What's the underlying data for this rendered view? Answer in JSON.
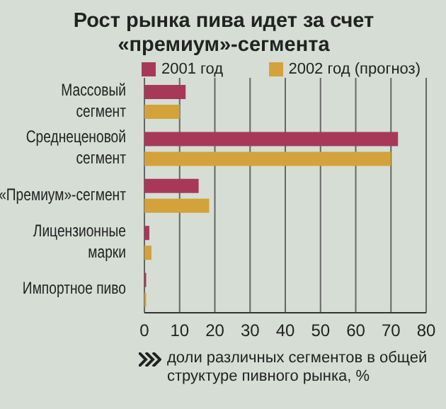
{
  "chart_data": {
    "type": "bar",
    "orientation": "horizontal",
    "title": "Рост рынка пива идет за счет «премиум»-сегмента",
    "xlabel": "доли различных сегментов в общей структуре пивного рынка, %",
    "categories": [
      "Массовый сегмент",
      "Среднеценовой сегмент",
      "«Премиум»-сегмент",
      "Лицензионные марки",
      "Импортное пиво"
    ],
    "series": [
      {
        "name": "2001 год",
        "color": "#a8385a",
        "values": [
          11.7,
          72,
          15.4,
          1.4,
          0.5
        ]
      },
      {
        "name": "2002 год (прогноз)",
        "color": "#d4a23a",
        "values": [
          10,
          70,
          18.4,
          2,
          0.5
        ]
      }
    ],
    "xlim": [
      0,
      80
    ],
    "xticks": [
      0,
      10,
      20,
      30,
      40,
      50,
      60,
      70,
      80
    ],
    "grid": "x",
    "legend": "top"
  }
}
